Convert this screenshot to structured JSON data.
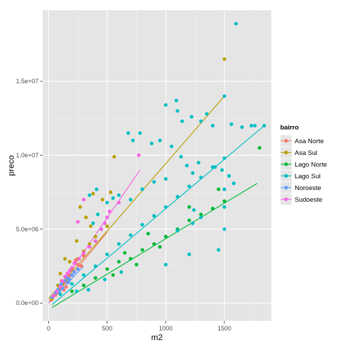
{
  "chart_data": {
    "type": "scatter",
    "xlabel": "m2",
    "ylabel": "preco",
    "xlim": [
      -50,
      1900
    ],
    "ylim": [
      -1200000,
      19800000
    ],
    "x_ticks": [
      0,
      500,
      1000,
      1500
    ],
    "x_tick_labels": [
      "0",
      "500",
      "1000",
      "1500"
    ],
    "y_ticks": [
      0,
      5000000,
      10000000,
      15000000
    ],
    "y_tick_labels": [
      "0.0e+00",
      "5.0e+06",
      "1.0e+07",
      "1.5e+07"
    ],
    "grid": true,
    "legend_position": "right",
    "legend_title": "bairro",
    "background": "#e5e5e5",
    "series": [
      {
        "name": "Asa Norte",
        "color": "#F8766D",
        "trend": {
          "x": [
            0,
            500
          ],
          "y": [
            0,
            4800000
          ]
        },
        "points": [
          [
            20,
            200000
          ],
          [
            40,
            450000
          ],
          [
            60,
            550000
          ],
          [
            80,
            800000
          ],
          [
            100,
            1000000
          ],
          [
            120,
            1300000
          ],
          [
            140,
            1400000
          ],
          [
            160,
            1600000
          ],
          [
            180,
            1900000
          ],
          [
            200,
            2200000
          ],
          [
            220,
            2100000
          ],
          [
            250,
            2600000
          ],
          [
            280,
            2500000
          ],
          [
            300,
            3200000
          ],
          [
            150,
            1100000
          ],
          [
            90,
            700000
          ],
          [
            110,
            1500000
          ],
          [
            130,
            900000
          ],
          [
            170,
            1800000
          ],
          [
            230,
            2900000
          ]
        ]
      },
      {
        "name": "Asa Sul",
        "color": "#B79F00",
        "trend": {
          "x": [
            0,
            1500
          ],
          "y": [
            300000,
            14000000
          ]
        },
        "points": [
          [
            30,
            300000
          ],
          [
            60,
            700000
          ],
          [
            90,
            900000
          ],
          [
            120,
            1300000
          ],
          [
            150,
            1600000
          ],
          [
            200,
            2300000
          ],
          [
            250,
            3000000
          ],
          [
            300,
            3500000
          ],
          [
            350,
            4000000
          ],
          [
            400,
            4500000
          ],
          [
            450,
            5000000
          ],
          [
            500,
            5200000
          ],
          [
            360,
            5200000
          ],
          [
            270,
            6500000
          ],
          [
            380,
            7400000
          ],
          [
            460,
            7000000
          ],
          [
            530,
            7500000
          ],
          [
            560,
            9900000
          ],
          [
            1500,
            16500000
          ],
          [
            100,
            2000000
          ],
          [
            180,
            2800000
          ],
          [
            240,
            4200000
          ],
          [
            320,
            5800000
          ],
          [
            140,
            3000000
          ],
          [
            80,
            1200000
          ]
        ]
      },
      {
        "name": "Lago Norte",
        "color": "#00BA38",
        "trend": {
          "x": [
            30,
            1780
          ],
          "y": [
            -300000,
            8100000
          ]
        },
        "points": [
          [
            200,
            800000
          ],
          [
            300,
            1200000
          ],
          [
            400,
            1700000
          ],
          [
            500,
            2300000
          ],
          [
            600,
            2800000
          ],
          [
            700,
            3000000
          ],
          [
            800,
            3600000
          ],
          [
            900,
            4000000
          ],
          [
            1000,
            4500000
          ],
          [
            1100,
            5000000
          ],
          [
            1200,
            5600000
          ],
          [
            1300,
            6000000
          ],
          [
            1400,
            6400000
          ],
          [
            1500,
            6900000
          ],
          [
            1800,
            10500000
          ],
          [
            650,
            3400000
          ],
          [
            850,
            4700000
          ],
          [
            1200,
            6500000
          ],
          [
            1450,
            7700000
          ],
          [
            950,
            3800000
          ],
          [
            750,
            2600000
          ],
          [
            550,
            1900000
          ]
        ]
      },
      {
        "name": "Lago Sul",
        "color": "#00BFC4",
        "trend": {
          "x": [
            30,
            1840
          ],
          "y": [
            -100000,
            12000000
          ]
        },
        "points": [
          [
            100,
            600000
          ],
          [
            200,
            1300000
          ],
          [
            300,
            1900000
          ],
          [
            400,
            2500000
          ],
          [
            500,
            3300000
          ],
          [
            600,
            4000000
          ],
          [
            700,
            4600000
          ],
          [
            800,
            5300000
          ],
          [
            900,
            5900000
          ],
          [
            1000,
            6500000
          ],
          [
            1100,
            7200000
          ],
          [
            1200,
            7900000
          ],
          [
            1300,
            8500000
          ],
          [
            1400,
            9200000
          ],
          [
            1500,
            9800000
          ],
          [
            1600,
            18900000
          ],
          [
            1500,
            14000000
          ],
          [
            1090,
            13700000
          ],
          [
            1000,
            13400000
          ],
          [
            1100,
            13000000
          ],
          [
            1140,
            12300000
          ],
          [
            1220,
            12600000
          ],
          [
            1300,
            12300000
          ],
          [
            1350,
            12800000
          ],
          [
            1400,
            12000000
          ],
          [
            1560,
            12100000
          ],
          [
            1650,
            11900000
          ],
          [
            1760,
            12000000
          ],
          [
            1840,
            12000000
          ],
          [
            680,
            11500000
          ],
          [
            720,
            11000000
          ],
          [
            780,
            11500000
          ],
          [
            880,
            10800000
          ],
          [
            950,
            11000000
          ],
          [
            1050,
            10600000
          ],
          [
            1130,
            9900000
          ],
          [
            1180,
            9300000
          ],
          [
            1230,
            8800000
          ],
          [
            1280,
            9500000
          ],
          [
            1420,
            9200000
          ],
          [
            1480,
            9000000
          ],
          [
            1540,
            8600000
          ],
          [
            1580,
            8100000
          ],
          [
            1730,
            12000000
          ],
          [
            1000,
            8400000
          ],
          [
            800,
            7700000
          ],
          [
            900,
            8200000
          ],
          [
            600,
            7300000
          ],
          [
            500,
            6800000
          ],
          [
            420,
            6000000
          ],
          [
            380,
            5400000
          ],
          [
            350,
            7300000
          ],
          [
            410,
            7700000
          ],
          [
            550,
            7100000
          ],
          [
            700,
            7000000
          ],
          [
            1500,
            7700000
          ],
          [
            1500,
            6500000
          ],
          [
            1300,
            5800000
          ],
          [
            1100,
            4900000
          ],
          [
            1450,
            3600000
          ],
          [
            1200,
            3300000
          ],
          [
            1000,
            2600000
          ],
          [
            1230,
            5400000
          ],
          [
            1240,
            6300000
          ],
          [
            1500,
            5000000
          ],
          [
            620,
            2100000
          ],
          [
            480,
            1600000
          ],
          [
            340,
            900000
          ],
          [
            240,
            800000
          ]
        ]
      },
      {
        "name": "Noroeste",
        "color": "#619CFF",
        "trend": {
          "x": [
            0,
            300
          ],
          "y": [
            0,
            2500000
          ]
        },
        "points": [
          [
            30,
            400000
          ],
          [
            60,
            700000
          ],
          [
            80,
            900000
          ],
          [
            100,
            1200000
          ],
          [
            120,
            1000000
          ],
          [
            140,
            1500000
          ],
          [
            160,
            1700000
          ],
          [
            180,
            1600000
          ],
          [
            200,
            1900000
          ],
          [
            220,
            2100000
          ],
          [
            250,
            2300000
          ],
          [
            90,
            800000
          ],
          [
            110,
            1300000
          ],
          [
            170,
            1400000
          ]
        ]
      },
      {
        "name": "Sudoeste",
        "color": "#F564E3",
        "trend": {
          "x": [
            0,
            780
          ],
          "y": [
            0,
            9000000
          ]
        },
        "points": [
          [
            40,
            500000
          ],
          [
            70,
            800000
          ],
          [
            100,
            1100000
          ],
          [
            120,
            1500000
          ],
          [
            140,
            1800000
          ],
          [
            160,
            2000000
          ],
          [
            180,
            2200000
          ],
          [
            200,
            2400000
          ],
          [
            220,
            2700000
          ],
          [
            260,
            3000000
          ],
          [
            300,
            3400000
          ],
          [
            350,
            3800000
          ],
          [
            400,
            4200000
          ],
          [
            450,
            5000000
          ],
          [
            480,
            5400000
          ],
          [
            500,
            5800000
          ],
          [
            520,
            6200000
          ],
          [
            600,
            6800000
          ],
          [
            770,
            10000000
          ],
          [
            300,
            7000000
          ],
          [
            250,
            5500000
          ]
        ]
      }
    ]
  }
}
